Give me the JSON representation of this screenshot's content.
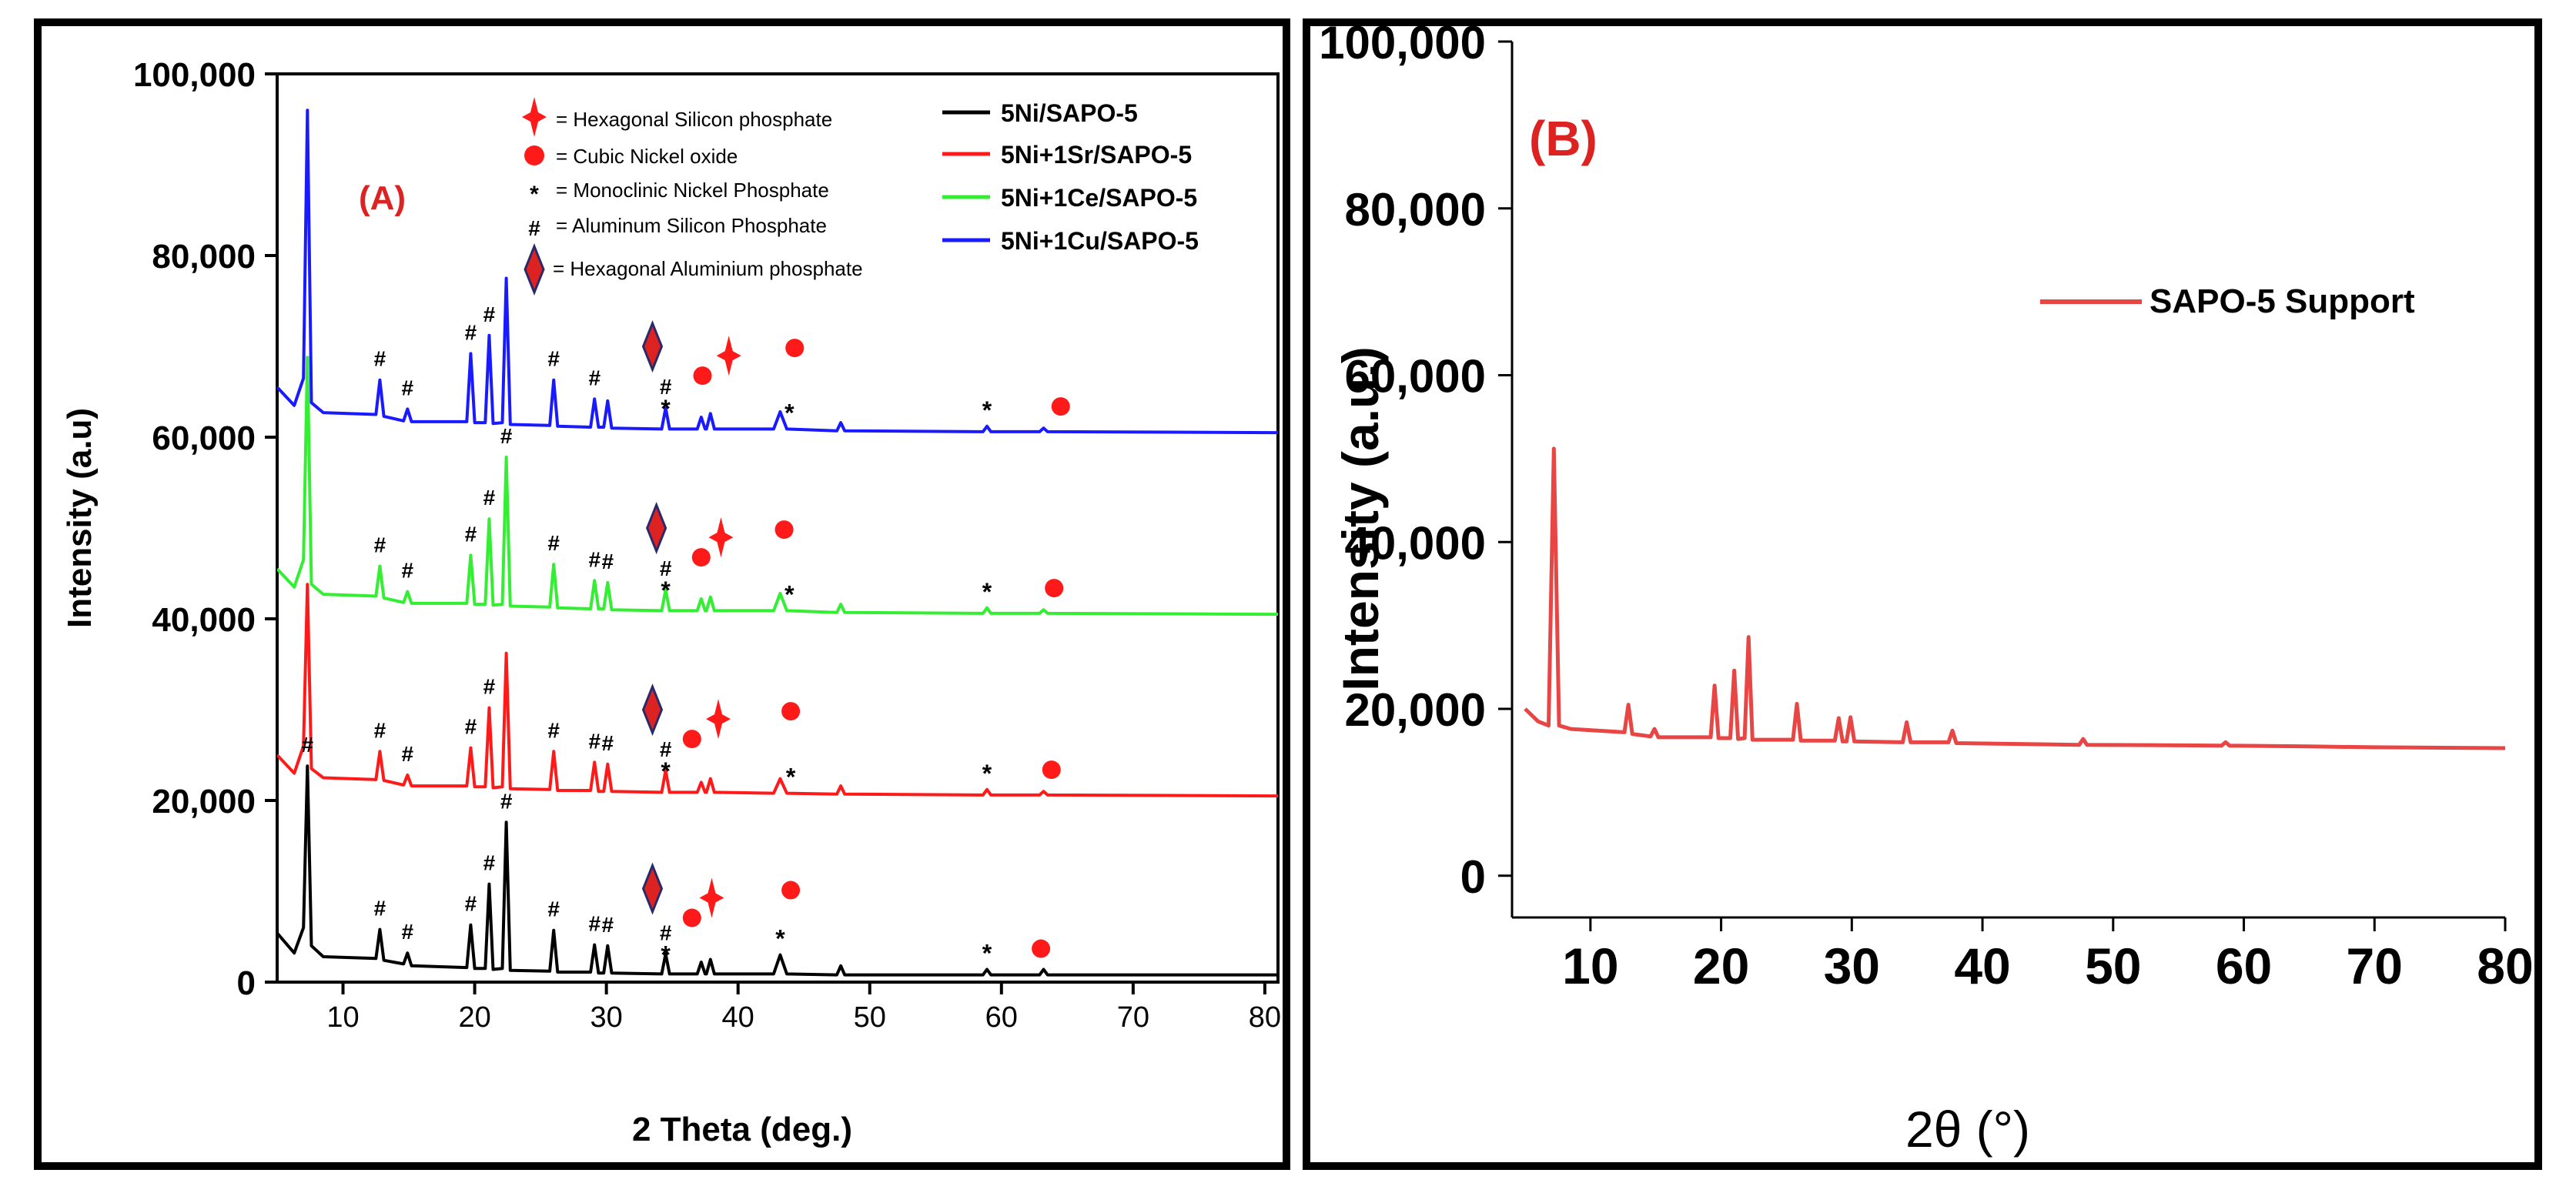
{
  "panel_a": {
    "label": "(A)",
    "ylabel": "Intensity (a.u)",
    "xlabel": "2 Theta (deg.)",
    "marker_legend": [
      {
        "symbol": "hex-silicon-phosphate",
        "text": "= Hexagonal Silicon phosphate"
      },
      {
        "symbol": "cubic-nickel-oxide",
        "text": "= Cubic Nickel oxide"
      },
      {
        "symbol": "*",
        "text": "= Monoclinic Nickel Phosphate"
      },
      {
        "symbol": "#",
        "text": "= Aluminum Silicon Phosphate"
      },
      {
        "symbol": "hex-aluminium-phosphate",
        "text": "= Hexagonal Aluminium phosphate"
      }
    ],
    "chart_data": {
      "type": "line",
      "xlim": [
        5,
        81
      ],
      "ylim": [
        0,
        100000
      ],
      "xticks": [
        10,
        20,
        30,
        40,
        50,
        60,
        70,
        80
      ],
      "yticks": [
        0,
        20000,
        40000,
        60000,
        80000,
        100000
      ],
      "ytick_labels": [
        "0",
        "20,000",
        "40,000",
        "60,000",
        "80,000",
        "100,000"
      ],
      "series": [
        {
          "name": "5Ni/SAPO-5",
          "color": "#000000",
          "baseline": 800,
          "x": [
            5,
            6.3,
            7.0,
            7.3,
            7.6,
            8.5,
            12.5,
            12.8,
            13.1,
            14.6,
            14.9,
            15.2,
            19.4,
            19.7,
            20.0,
            20.8,
            21.1,
            21.4,
            22.1,
            22.4,
            22.7,
            25.7,
            26.0,
            26.3,
            28.8,
            29.1,
            29.4,
            29.8,
            30.1,
            30.4,
            34.2,
            34.5,
            34.8,
            36.9,
            37.2,
            37.5,
            37.6,
            37.9,
            38.2,
            42.7,
            43.2,
            43.7,
            47.5,
            47.8,
            48.1,
            58.6,
            58.9,
            59.2,
            62.9,
            63.2,
            63.5,
            81
          ],
          "y": [
            5400,
            3200,
            6000,
            23800,
            4000,
            2800,
            2600,
            5800,
            2400,
            2000,
            3200,
            1800,
            1600,
            6300,
            1500,
            1500,
            10800,
            1400,
            1500,
            17600,
            1300,
            1200,
            5700,
            1100,
            1100,
            4100,
            1000,
            1000,
            4000,
            1000,
            900,
            3100,
            900,
            900,
            2200,
            900,
            900,
            2500,
            900,
            900,
            3000,
            900,
            800,
            1800,
            800,
            800,
            1400,
            800,
            800,
            1400,
            800,
            800
          ]
        },
        {
          "name": "5Ni+1Sr/SAPO-5",
          "color": "#ff1a1a",
          "baseline": 20500,
          "x": [
            5,
            6.3,
            7.0,
            7.3,
            7.6,
            8.5,
            12.5,
            12.8,
            13.1,
            14.6,
            14.9,
            15.2,
            19.4,
            19.7,
            20.0,
            20.8,
            21.1,
            21.4,
            22.1,
            22.4,
            22.7,
            25.7,
            26.0,
            26.3,
            28.8,
            29.1,
            29.4,
            29.8,
            30.1,
            30.4,
            34.2,
            34.5,
            34.8,
            36.9,
            37.2,
            37.5,
            37.6,
            37.9,
            38.2,
            42.7,
            43.2,
            43.7,
            47.5,
            47.8,
            48.1,
            58.6,
            58.9,
            59.2,
            62.9,
            63.2,
            63.5,
            81
          ],
          "y": [
            25000,
            23000,
            26000,
            43800,
            23500,
            22500,
            22300,
            25400,
            22200,
            21700,
            22800,
            21600,
            21600,
            25800,
            21500,
            21500,
            30200,
            21400,
            21500,
            36200,
            21300,
            21200,
            25400,
            21100,
            21100,
            24200,
            21000,
            21000,
            24000,
            21000,
            20900,
            23300,
            20900,
            20900,
            22000,
            20900,
            20900,
            22400,
            20900,
            20800,
            22400,
            20800,
            20700,
            21600,
            20700,
            20600,
            21200,
            20600,
            20600,
            21000,
            20600,
            20500
          ]
        },
        {
          "name": "5Ni+1Ce/SAPO-5",
          "color": "#33ee33",
          "baseline": 40500,
          "x": [
            5,
            6.3,
            7.0,
            7.3,
            7.6,
            8.5,
            12.5,
            12.8,
            13.1,
            14.6,
            14.9,
            15.2,
            19.4,
            19.7,
            20.0,
            20.8,
            21.1,
            21.4,
            22.1,
            22.4,
            22.7,
            25.7,
            26.0,
            26.3,
            28.8,
            29.1,
            29.4,
            29.8,
            30.1,
            30.4,
            34.2,
            34.5,
            34.8,
            36.9,
            37.2,
            37.5,
            37.6,
            37.9,
            38.2,
            42.7,
            43.2,
            43.7,
            47.5,
            47.8,
            48.1,
            58.6,
            58.9,
            59.2,
            62.9,
            63.2,
            63.5,
            81
          ],
          "y": [
            45500,
            43500,
            46500,
            68800,
            43800,
            42700,
            42500,
            45800,
            42300,
            41800,
            43000,
            41700,
            41700,
            47000,
            41600,
            41600,
            51000,
            41500,
            41600,
            57800,
            41400,
            41300,
            46000,
            41200,
            41100,
            44200,
            41100,
            41100,
            44000,
            41000,
            40900,
            43200,
            40900,
            40900,
            42200,
            40900,
            40900,
            42400,
            40900,
            40900,
            42800,
            40900,
            40700,
            41600,
            40700,
            40600,
            41200,
            40600,
            40600,
            41000,
            40600,
            40500
          ]
        },
        {
          "name": "5Ni+1Cu/SAPO-5",
          "color": "#1a1aff",
          "baseline": 60500,
          "x": [
            5,
            6.3,
            7.0,
            7.3,
            7.6,
            8.5,
            12.5,
            12.8,
            13.1,
            14.6,
            14.9,
            15.2,
            19.4,
            19.7,
            20.0,
            20.8,
            21.1,
            21.4,
            22.1,
            22.4,
            22.7,
            25.7,
            26.0,
            26.3,
            28.8,
            29.1,
            29.4,
            29.8,
            30.1,
            30.4,
            34.2,
            34.5,
            34.8,
            36.9,
            37.2,
            37.5,
            37.6,
            37.9,
            38.2,
            42.7,
            43.2,
            43.7,
            47.5,
            47.8,
            48.1,
            58.6,
            58.9,
            59.2,
            62.9,
            63.2,
            63.5,
            81
          ],
          "y": [
            65500,
            63500,
            66500,
            96000,
            63800,
            62700,
            62500,
            66300,
            62300,
            61800,
            63100,
            61700,
            61700,
            69200,
            61600,
            61600,
            71200,
            61500,
            61600,
            77500,
            61400,
            61300,
            66300,
            61200,
            61100,
            64200,
            61100,
            61100,
            64000,
            61000,
            60900,
            63200,
            60900,
            60900,
            62200,
            60900,
            60900,
            62600,
            60900,
            60900,
            62800,
            60900,
            60700,
            61600,
            60700,
            60600,
            61200,
            60600,
            60600,
            61000,
            60600,
            60500
          ]
        }
      ],
      "annotations": [
        {
          "series": 0,
          "marks": [
            {
              "x": 7.3,
              "s": "#"
            },
            {
              "x": 12.8,
              "s": "#"
            },
            {
              "x": 14.9,
              "s": "#"
            },
            {
              "x": 19.7,
              "s": "#"
            },
            {
              "x": 21.1,
              "s": "#"
            },
            {
              "x": 22.4,
              "s": "#"
            },
            {
              "x": 26.0,
              "s": "#"
            },
            {
              "x": 29.1,
              "s": "#"
            },
            {
              "x": 30.1,
              "s": "#"
            },
            {
              "x": 34.5,
              "s": "#"
            },
            {
              "x": 34.5,
              "s": "*"
            },
            {
              "x": 43.2,
              "s": "*"
            },
            {
              "x": 58.9,
              "s": "*"
            }
          ]
        },
        {
          "series": 1,
          "marks": [
            {
              "x": 12.8,
              "s": "#"
            },
            {
              "x": 14.9,
              "s": "#"
            },
            {
              "x": 19.7,
              "s": "#"
            },
            {
              "x": 21.1,
              "s": "#"
            },
            {
              "x": 26.0,
              "s": "#"
            },
            {
              "x": 29.1,
              "s": "#"
            },
            {
              "x": 30.1,
              "s": "#"
            },
            {
              "x": 34.5,
              "s": "#"
            },
            {
              "x": 34.5,
              "s": "*"
            },
            {
              "x": 44.0,
              "s": "*"
            },
            {
              "x": 58.9,
              "s": "*"
            }
          ]
        },
        {
          "series": 2,
          "marks": [
            {
              "x": 12.8,
              "s": "#"
            },
            {
              "x": 14.9,
              "s": "#"
            },
            {
              "x": 19.7,
              "s": "#"
            },
            {
              "x": 21.1,
              "s": "#"
            },
            {
              "x": 22.4,
              "s": "#"
            },
            {
              "x": 26.0,
              "s": "#"
            },
            {
              "x": 29.1,
              "s": "#"
            },
            {
              "x": 30.1,
              "s": "#"
            },
            {
              "x": 34.5,
              "s": "#"
            },
            {
              "x": 34.5,
              "s": "*"
            },
            {
              "x": 43.9,
              "s": "*"
            },
            {
              "x": 58.9,
              "s": "*"
            }
          ]
        },
        {
          "series": 3,
          "marks": [
            {
              "x": 12.8,
              "s": "#"
            },
            {
              "x": 14.9,
              "s": "#"
            },
            {
              "x": 19.7,
              "s": "#"
            },
            {
              "x": 21.1,
              "s": "#"
            },
            {
              "x": 26.0,
              "s": "#"
            },
            {
              "x": 29.1,
              "s": "#"
            },
            {
              "x": 34.5,
              "s": "#"
            },
            {
              "x": 34.5,
              "s": "*"
            },
            {
              "x": 43.9,
              "s": "*"
            },
            {
              "x": 58.9,
              "s": "*"
            }
          ]
        }
      ],
      "phase_marks": [
        {
          "series": 0,
          "diamond_x": 33.5,
          "star_x": 38.0,
          "ox": [
            36.5,
            44.0,
            63.0
          ]
        },
        {
          "series": 1,
          "diamond_x": 33.5,
          "star_x": 38.5,
          "ox": [
            36.5,
            44.0,
            63.8
          ]
        },
        {
          "series": 2,
          "diamond_x": 33.8,
          "star_x": 38.7,
          "ox": [
            37.2,
            43.5,
            64.0
          ]
        },
        {
          "series": 3,
          "diamond_x": 33.5,
          "star_x": 39.3,
          "ox": [
            37.3,
            44.3,
            64.5
          ]
        }
      ]
    }
  },
  "panel_b": {
    "label": "(B)",
    "ylabel": "Intensity (a.u.)",
    "xlabel": "2θ (°)",
    "chart_data": {
      "type": "line",
      "xlim": [
        4,
        80
      ],
      "ylim": [
        -5000,
        100000
      ],
      "xticks": [
        10,
        20,
        30,
        40,
        50,
        60,
        70,
        80
      ],
      "yticks": [
        0,
        20000,
        40000,
        60000,
        80000,
        100000
      ],
      "ytick_labels": [
        "0",
        "20,000",
        "40,000",
        "60,000",
        "80,000",
        "100,000"
      ],
      "series": [
        {
          "name": "SAPO-5 Support",
          "color": "#e84545",
          "x": [
            5,
            6.0,
            6.8,
            7.2,
            7.6,
            8.5,
            12.6,
            12.9,
            13.2,
            14.6,
            14.9,
            15.2,
            19.2,
            19.5,
            19.8,
            20.7,
            21.0,
            21.3,
            21.8,
            22.1,
            22.4,
            25.5,
            25.8,
            26.1,
            28.7,
            29.0,
            29.3,
            29.6,
            29.9,
            30.2,
            33.9,
            34.2,
            34.5,
            37.4,
            37.7,
            38.0,
            47.4,
            47.7,
            48.0,
            58.3,
            58.6,
            58.9,
            65,
            70,
            80
          ],
          "y": [
            20000,
            18500,
            18000,
            51200,
            18000,
            17600,
            17200,
            20500,
            17000,
            16700,
            17600,
            16600,
            16600,
            22800,
            16500,
            16500,
            24600,
            16400,
            16500,
            28600,
            16300,
            16300,
            20600,
            16200,
            16200,
            18900,
            16100,
            16100,
            19000,
            16100,
            16000,
            18400,
            16000,
            16000,
            17400,
            15900,
            15700,
            16400,
            15700,
            15600,
            16000,
            15600,
            15500,
            15400,
            15300
          ]
        }
      ]
    }
  }
}
